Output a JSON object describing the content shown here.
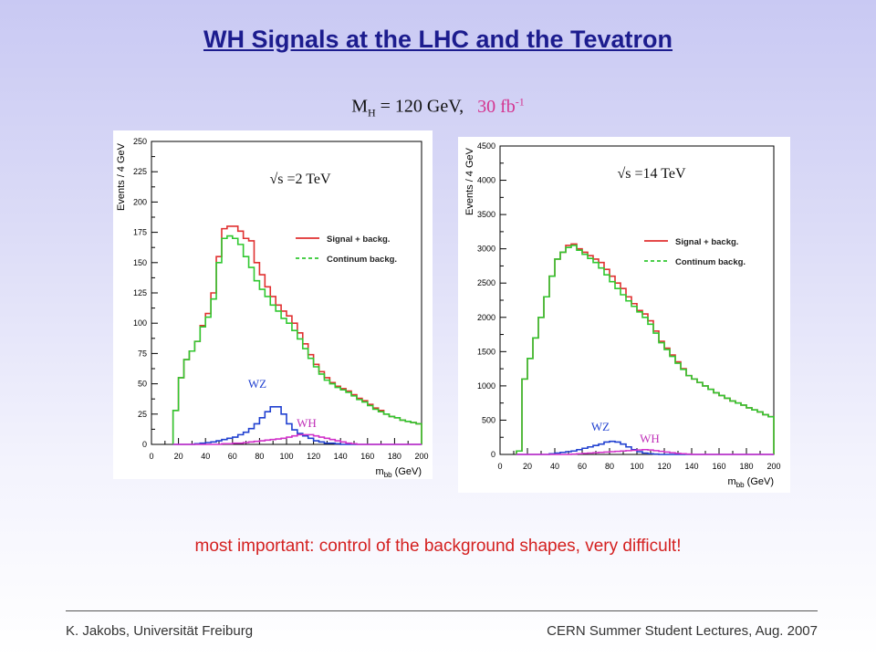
{
  "slide": {
    "title": "WH Signals at the LHC and the Tevatron",
    "subtitle_mass": "M",
    "subtitle_mass_sub": "H",
    "subtitle_mass_value": " = 120 GeV,",
    "subtitle_lumi": "30 fb",
    "subtitle_lumi_sup": "-1",
    "note": "most important: control of the background shapes, very difficult!",
    "footer_left": "K. Jakobs,   Universität Freiburg",
    "footer_right": "CERN Summer Student Lectures,  Aug. 2007"
  },
  "chart_data": [
    {
      "type": "line",
      "energy_label": "√s =2 TeV",
      "xlabel": "m",
      "xlabel_sub": "bb",
      "xlabel_unit": " (GeV)",
      "ylabel": "Events / 4 GeV",
      "xlim": [
        0,
        200
      ],
      "ylim": [
        0,
        250
      ],
      "xticks": [
        0,
        20,
        40,
        60,
        80,
        100,
        120,
        140,
        160,
        180,
        200
      ],
      "yticks": [
        0,
        25,
        50,
        75,
        100,
        125,
        150,
        175,
        200,
        225,
        250
      ],
      "legend_position": "top-right",
      "annotations": [
        "WZ",
        "WH"
      ],
      "bin_edges_start": 16,
      "bin_width": 4,
      "series": [
        {
          "name": "Signal + backg.",
          "color": "#e03030",
          "values": [
            28,
            55,
            70,
            77,
            85,
            98,
            108,
            125,
            155,
            178,
            180,
            180,
            176,
            170,
            168,
            150,
            140,
            130,
            122,
            115,
            110,
            106,
            100,
            92,
            83,
            74,
            66,
            60,
            55,
            51,
            48,
            46,
            44,
            41,
            38,
            36,
            33,
            30,
            28,
            25,
            23,
            22,
            20,
            19,
            18,
            17
          ]
        },
        {
          "name": "Continum backg.",
          "color": "#30c830",
          "values": [
            28,
            55,
            70,
            77,
            85,
            97,
            105,
            120,
            150,
            170,
            172,
            170,
            165,
            155,
            146,
            135,
            128,
            122,
            115,
            110,
            104,
            100,
            94,
            87,
            79,
            71,
            64,
            58,
            53,
            50,
            47,
            45,
            43,
            40,
            37,
            35,
            32,
            29,
            27,
            25,
            23,
            22,
            20,
            19,
            18,
            17
          ]
        },
        {
          "name": "WZ",
          "color": "#2040d0",
          "values": [
            0,
            0,
            0,
            0,
            0.5,
            1,
            1.5,
            2,
            3,
            4,
            5,
            6,
            8,
            10,
            13,
            17,
            22,
            27,
            31,
            31,
            25,
            17,
            12,
            9,
            7,
            5,
            3,
            2,
            1,
            1,
            0.5,
            0,
            0,
            0,
            0,
            0,
            0,
            0,
            0,
            0,
            0,
            0,
            0,
            0,
            0,
            0
          ]
        },
        {
          "name": "WH",
          "color": "#d030c8",
          "values": [
            0,
            0,
            0,
            0,
            0,
            0,
            0,
            0,
            0,
            0.5,
            0.5,
            1,
            1,
            1.5,
            2,
            2.5,
            3,
            3.5,
            4,
            4.5,
            5,
            6,
            7,
            8,
            8,
            8,
            7,
            6,
            5,
            4,
            3,
            2,
            1,
            0.5,
            0,
            0,
            0,
            0,
            0,
            0,
            0,
            0,
            0,
            0,
            0,
            0
          ]
        }
      ]
    },
    {
      "type": "line",
      "energy_label": "√s =14 TeV",
      "xlabel": "m",
      "xlabel_sub": "bb",
      "xlabel_unit": " (GeV)",
      "ylabel": "Events / 4 GeV",
      "xlim": [
        0,
        200
      ],
      "ylim": [
        0,
        4500
      ],
      "xticks": [
        0,
        20,
        40,
        60,
        80,
        100,
        120,
        140,
        160,
        180,
        200
      ],
      "yticks": [
        0,
        500,
        1000,
        1500,
        2000,
        2500,
        3000,
        3500,
        4000,
        4500
      ],
      "legend_position": "top-right",
      "annotations": [
        "WZ",
        "WH"
      ],
      "bin_edges_start": 12,
      "bin_width": 4,
      "series": [
        {
          "name": "Signal + backg.",
          "color": "#e03030",
          "values": [
            50,
            1100,
            1400,
            1700,
            2000,
            2300,
            2600,
            2850,
            2950,
            3050,
            3070,
            3000,
            2950,
            2900,
            2850,
            2800,
            2700,
            2600,
            2500,
            2420,
            2300,
            2200,
            2100,
            2050,
            1950,
            1800,
            1650,
            1550,
            1450,
            1350,
            1250,
            1150,
            1100,
            1050,
            1000,
            950,
            900,
            860,
            820,
            780,
            750,
            720,
            680,
            650,
            620,
            580,
            550
          ]
        },
        {
          "name": "Continum backg.",
          "color": "#30c830",
          "values": [
            50,
            1100,
            1400,
            1700,
            2000,
            2300,
            2600,
            2850,
            2950,
            3020,
            3050,
            2980,
            2920,
            2860,
            2800,
            2720,
            2620,
            2520,
            2420,
            2330,
            2240,
            2160,
            2080,
            2000,
            1900,
            1770,
            1630,
            1530,
            1430,
            1330,
            1240,
            1150,
            1100,
            1050,
            1000,
            950,
            900,
            860,
            820,
            780,
            750,
            720,
            680,
            650,
            620,
            580,
            550
          ]
        },
        {
          "name": "WZ",
          "color": "#2040d0",
          "values": [
            0,
            0,
            0,
            0,
            0,
            0,
            10,
            20,
            30,
            40,
            50,
            70,
            90,
            110,
            130,
            150,
            180,
            190,
            180,
            150,
            110,
            70,
            40,
            20,
            10,
            5,
            0,
            0,
            0,
            0,
            0,
            0,
            0,
            0,
            0,
            0,
            0,
            0,
            0,
            0,
            0,
            0,
            0,
            0,
            0,
            0,
            0
          ]
        },
        {
          "name": "WH",
          "color": "#d030c8",
          "values": [
            0,
            0,
            0,
            0,
            0,
            0,
            0,
            0,
            0,
            0,
            5,
            10,
            15,
            20,
            25,
            30,
            35,
            40,
            45,
            50,
            55,
            60,
            65,
            70,
            65,
            55,
            45,
            35,
            25,
            15,
            10,
            5,
            0,
            0,
            0,
            0,
            0,
            0,
            0,
            0,
            0,
            0,
            0,
            0,
            0,
            0,
            0
          ]
        }
      ]
    }
  ]
}
